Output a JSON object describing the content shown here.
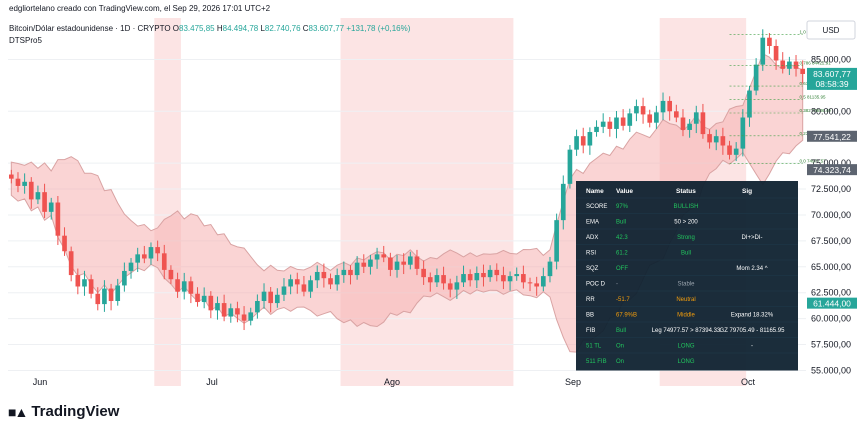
{
  "header": {
    "credit": "edgliortelano creado con TradingView.com, el Sep 29, 2026 17:01 UTC+2",
    "symbol": "Bitcoin/Dólar estadounidense · 1D · CRYPTO",
    "ohlc": {
      "o_label": "O",
      "o": "83.475,85",
      "h_label": "H",
      "h": "84.494,78",
      "l_label": "L",
      "l": "82.740,76",
      "c_label": "C",
      "c": "83.607,77",
      "change": "+131,78 (+0,16%)"
    },
    "indicator": "DTSPro5"
  },
  "footer": {
    "brand": "TradingView"
  },
  "colors": {
    "up": "#26a69a",
    "down": "#ef5350",
    "red_zone": "#fce4e4",
    "cloud_red": "#f5b0b0",
    "cloud_green": "#c8efd8",
    "panel_bg": "#0f2230",
    "bullish": "#22c55e",
    "neutral": "#f59e0b"
  },
  "chart_data": {
    "type": "candlestick",
    "currency_label": "USD",
    "x_ticks": [
      "Jun",
      "Jul",
      "Ago",
      "Sep",
      "Oct"
    ],
    "y_ticks": [
      "85.000,00",
      "80.000,00",
      "75.000,00",
      "72.500,00",
      "70.000,00",
      "67.500,00",
      "65.000,00",
      "62.500,00",
      "60.000,00",
      "57.500,00",
      "55.000,00"
    ],
    "ylim": [
      53500,
      89000
    ],
    "price_labels": [
      {
        "text": "83.607,77",
        "sub": "08:58:39",
        "value": 83607.77,
        "style": "green"
      },
      {
        "text": "77.541,22",
        "value": 77541.22,
        "style": "gray"
      },
      {
        "text": "74.323,74",
        "value": 74323.74,
        "style": "gray"
      },
      {
        "text": "61.444,00",
        "value": 61444.0,
        "style": "green"
      }
    ],
    "fib_levels": [
      {
        "label": "1.0 87394.33",
        "value": 87394
      },
      {
        "label": "0.786 84422.91",
        "value": 84423
      },
      {
        "label": "0.618 82435.41",
        "value": 82435
      },
      {
        "label": "0.5 81135.95",
        "value": 81136
      },
      {
        "label": "0.382 79836.49",
        "value": 79836
      },
      {
        "label": "0.236 77635.38",
        "value": 77635
      },
      {
        "label": "0.0 74977.57",
        "value": 74978
      }
    ],
    "closes": [
      73500,
      72800,
      73200,
      71500,
      72200,
      70300,
      71200,
      68000,
      66500,
      64200,
      63100,
      63800,
      62400,
      61400,
      62900,
      61700,
      63200,
      64600,
      65400,
      66200,
      65800,
      66900,
      66300,
      64700,
      63800,
      62600,
      63600,
      62400,
      61600,
      62200,
      60800,
      61500,
      60200,
      61000,
      60400,
      59800,
      60600,
      61700,
      62600,
      61500,
      62300,
      63100,
      63800,
      63300,
      62600,
      63700,
      64500,
      63900,
      63300,
      64200,
      64700,
      64200,
      65400,
      65000,
      65700,
      66200,
      65900,
      64700,
      65500,
      65200,
      66000,
      64800,
      64000,
      63500,
      64200,
      63400,
      62800,
      63500,
      64300,
      63700,
      64400,
      64000,
      64700,
      64200,
      63600,
      64100,
      64300,
      63500,
      63400,
      63100,
      64100,
      65500,
      69500,
      73000,
      76300,
      77600,
      76700,
      78000,
      78500,
      79000,
      78300,
      79400,
      78600,
      79800,
      80500,
      79700,
      78900,
      79900,
      81000,
      80000,
      79400,
      78200,
      78800,
      79900,
      77800,
      77000,
      77600,
      76700,
      75800,
      76400,
      79400,
      82000,
      84500,
      87100,
      86300,
      84900,
      84100,
      84800,
      84100,
      83600
    ],
    "red_zones": [
      {
        "from": 22,
        "to": 26
      },
      {
        "from": 50,
        "to": 76
      },
      {
        "from": 98,
        "to": 111
      }
    ],
    "panel": {
      "headers": [
        "Name",
        "Value",
        "Status",
        "Sig"
      ],
      "rows": [
        {
          "name": "SCORE",
          "value": "97%",
          "status": "BULLISH",
          "sig": "",
          "vcolor": "bull",
          "scolor": "bull"
        },
        {
          "name": "EMA",
          "value": "Bull",
          "status": "50 > 200",
          "sig": "",
          "vcolor": "bull",
          "scolor": "white"
        },
        {
          "name": "ADX",
          "value": "42.3",
          "status": "Strong",
          "sig": "DI+>DI-",
          "vcolor": "bull",
          "scolor": "bull"
        },
        {
          "name": "RSI",
          "value": "61.2",
          "status": "Bull",
          "sig": "",
          "vcolor": "bull",
          "scolor": "bull"
        },
        {
          "name": "SQZ",
          "value": "OFF",
          "status": "",
          "sig": "Mom 2.34 ^",
          "vcolor": "bull",
          "scolor": "white"
        },
        {
          "name": "POC D",
          "value": "-",
          "status": "Stable",
          "sig": "",
          "vcolor": "gray",
          "scolor": "gray"
        },
        {
          "name": "RR",
          "value": "-51.7",
          "status": "Neutral",
          "sig": "",
          "vcolor": "neutral",
          "scolor": "neutral"
        },
        {
          "name": "BB",
          "value": "67.9%B",
          "status": "Middle",
          "sig": "Expand 18.32%",
          "vcolor": "neutral",
          "scolor": "neutral"
        },
        {
          "name": "FIB",
          "value": "Bull",
          "status": "Leg 74977.57 > 87394.33",
          "sig": "GZ 79705.49 - 81165.95",
          "vcolor": "bull",
          "scolor": "white"
        },
        {
          "name": "51 TL",
          "value": "On",
          "status": "LONG",
          "sig": "-",
          "vcolor": "bull",
          "scolor": "bull"
        },
        {
          "name": "511 FIB",
          "value": "On",
          "status": "LONG",
          "sig": "",
          "vcolor": "bull",
          "scolor": "bull"
        }
      ]
    }
  }
}
